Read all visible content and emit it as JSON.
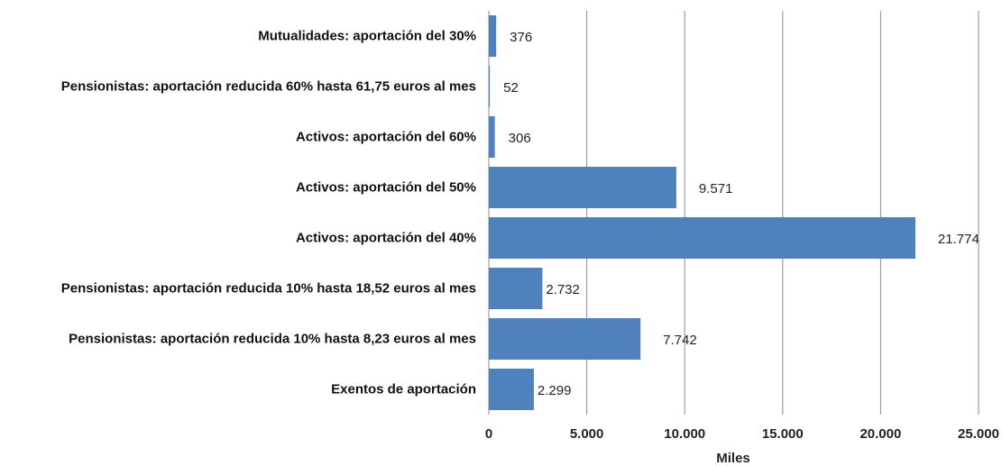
{
  "chart_data": {
    "type": "barh",
    "categories": [
      "Mutualidades: aportación del 30%",
      "Pensionistas: aportación reducida 60% hasta 61,75 euros al mes",
      "Activos: aportación del 60%",
      "Activos: aportación del 50%",
      "Activos: aportación del 40%",
      "Pensionistas: aportación reducida 10% hasta 18,52 euros al mes",
      "Pensionistas: aportación reducida 10% hasta 8,23 euros al mes",
      "Exentos de aportación"
    ],
    "values": [
      376,
      52,
      306,
      9571,
      21774,
      2732,
      7742,
      2299
    ],
    "value_labels": [
      "376",
      "52",
      "306",
      "9.571",
      "21.774",
      "2.732",
      "7.742",
      "2.299"
    ],
    "color": "#4f81bd",
    "xlim": [
      0,
      25000
    ],
    "xticks": [
      0,
      {
        "value": 5000,
        "label": "5.000"
      },
      {
        "value": 10000,
        "label": "10.000"
      },
      {
        "value": 15000,
        "label": "15.000"
      },
      {
        "value": 20000,
        "label": "20.000"
      },
      {
        "value": 25000,
        "label": "25.000"
      }
    ],
    "xlabel": "Miles",
    "grid": true
  }
}
